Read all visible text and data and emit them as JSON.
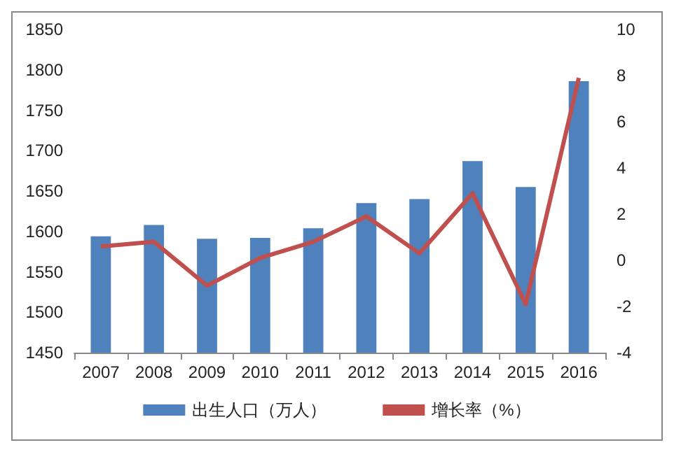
{
  "chart_data": {
    "type": "bar",
    "categories": [
      "2007",
      "2008",
      "2009",
      "2010",
      "2011",
      "2012",
      "2013",
      "2014",
      "2015",
      "2016"
    ],
    "series": [
      {
        "name": "出生人口（万人）",
        "color": "#4f81bd",
        "values": [
          1594,
          1608,
          1591,
          1592,
          1604,
          1635,
          1640,
          1687,
          1655,
          1786
        ]
      },
      {
        "name": "增长率（%）",
        "type": "line",
        "axis": "y2",
        "color": "#c0504d",
        "values": [
          0.6,
          0.8,
          -1.1,
          0.1,
          0.8,
          1.9,
          0.3,
          2.9,
          -1.9,
          7.9
        ]
      }
    ],
    "ylim": [
      1450,
      1850
    ],
    "yticks": [
      1450,
      1500,
      1550,
      1600,
      1650,
      1700,
      1750,
      1800,
      1850
    ],
    "y2lim": [
      -4,
      10
    ],
    "y2ticks": [
      -4,
      -2,
      0,
      2,
      4,
      6,
      8,
      10
    ],
    "legend": "bottom",
    "grid": false,
    "marker": "none"
  }
}
